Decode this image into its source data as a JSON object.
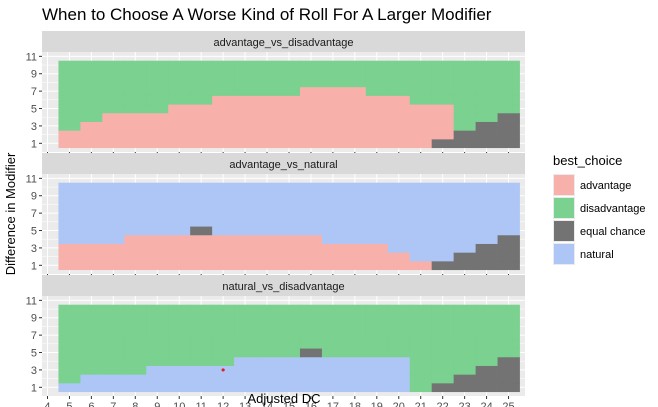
{
  "chart_data": {
    "type": "heatmap",
    "title": "When to Choose A Worse Kind of Roll For A Larger Modifier",
    "xlabel": "Adjusted DC",
    "ylabel": "Difference in Modifier",
    "x_ticks": [
      4,
      5,
      6,
      7,
      8,
      9,
      10,
      11,
      12,
      13,
      14,
      15,
      16,
      17,
      18,
      19,
      20,
      21,
      22,
      23,
      24,
      25
    ],
    "y_ticks": [
      1,
      3,
      5,
      7,
      9,
      11
    ],
    "x_range": [
      5,
      25
    ],
    "y_range": [
      1,
      10
    ],
    "legend": {
      "title": "best_choice",
      "placement": "right",
      "entries": [
        {
          "key": "advantage",
          "label": "advantage",
          "color": "#F8B0AA"
        },
        {
          "key": "disadvantage",
          "label": "disadvantage",
          "color": "#7BD18F"
        },
        {
          "key": "equal",
          "label": "equal chance",
          "color": "#737373"
        },
        {
          "key": "natural",
          "label": "natural",
          "color": "#AEC6F6"
        }
      ]
    },
    "panels": [
      {
        "name": "advantage_vs_disadvantage",
        "default": "disadvantage",
        "lower": "advantage",
        "lower_max": [
          2,
          3,
          4,
          4,
          4,
          5,
          5,
          6,
          6,
          6,
          6,
          7,
          7,
          7,
          6,
          6,
          5,
          5,
          0,
          0,
          0
        ],
        "equal_max": [
          0,
          0,
          0,
          0,
          0,
          0,
          0,
          0,
          0,
          0,
          0,
          0,
          0,
          0,
          0,
          0,
          0,
          1,
          2,
          3,
          4
        ],
        "special_cells": []
      },
      {
        "name": "advantage_vs_natural",
        "default": "natural",
        "lower": "advantage",
        "lower_max": [
          3,
          3,
          3,
          4,
          4,
          4,
          4,
          4,
          4,
          4,
          4,
          4,
          3,
          3,
          3,
          2,
          1,
          0,
          0,
          0,
          0
        ],
        "equal_max": [
          0,
          0,
          0,
          0,
          0,
          0,
          0,
          0,
          0,
          0,
          0,
          0,
          0,
          0,
          0,
          0,
          0,
          1,
          2,
          3,
          4
        ],
        "special_cells": [
          {
            "x": 11,
            "y": 5,
            "best": "equal"
          }
        ]
      },
      {
        "name": "natural_vs_disadvantage",
        "default": "disadvantage",
        "lower": "natural",
        "lower_max": [
          1,
          2,
          2,
          2,
          3,
          3,
          3,
          3,
          4,
          4,
          4,
          4,
          4,
          4,
          4,
          4,
          0,
          0,
          0,
          0,
          0
        ],
        "equal_max": [
          0,
          0,
          0,
          0,
          0,
          0,
          0,
          0,
          0,
          0,
          0,
          0,
          0,
          0,
          0,
          0,
          0,
          1,
          2,
          3,
          4
        ],
        "special_cells": [
          {
            "x": 16,
            "y": 5,
            "best": "equal"
          }
        ],
        "marker": {
          "x": 12,
          "y": 3,
          "color": "#E0201B"
        }
      }
    ]
  }
}
